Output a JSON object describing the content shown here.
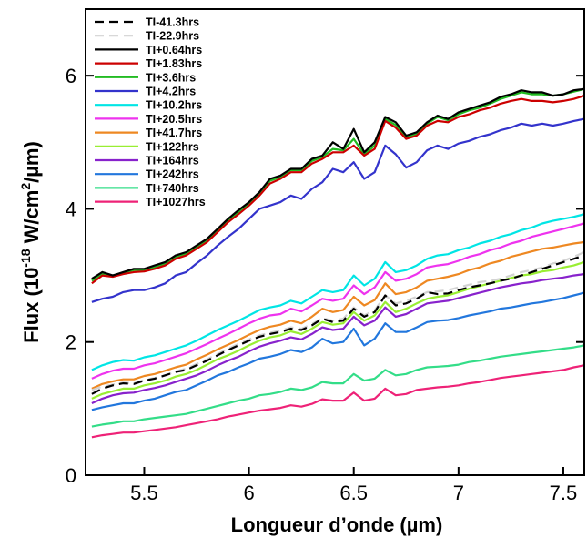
{
  "chart_data": {
    "type": "line",
    "xlabel": "Longueur d’onde (µm)",
    "ylabel_main": "Flux (10",
    "ylabel_sup1": "-18",
    "ylabel_mid": " W/cm",
    "ylabel_sup2": "2",
    "ylabel_end": "/µm)",
    "xlim": [
      5.22,
      7.6
    ],
    "ylim": [
      0,
      7.0
    ],
    "x_ticks": [
      5.5,
      6,
      6.5,
      7,
      7.5
    ],
    "x_tick_labels": [
      "5.5",
      "6",
      "6.5",
      "7",
      "7.5"
    ],
    "y_ticks": [
      0,
      2,
      4,
      6
    ],
    "y_tick_labels": [
      "0",
      "2",
      "4",
      "6"
    ],
    "legend_position": "top-left",
    "x": [
      5.25,
      5.3,
      5.35,
      5.4,
      5.45,
      5.5,
      5.55,
      5.6,
      5.65,
      5.7,
      5.75,
      5.8,
      5.85,
      5.9,
      5.95,
      6.0,
      6.05,
      6.1,
      6.15,
      6.2,
      6.25,
      6.3,
      6.35,
      6.4,
      6.45,
      6.5,
      6.55,
      6.6,
      6.65,
      6.7,
      6.75,
      6.8,
      6.85,
      6.9,
      6.95,
      7.0,
      7.05,
      7.1,
      7.15,
      7.2,
      7.25,
      7.3,
      7.35,
      7.4,
      7.45,
      7.5,
      7.55,
      7.6
    ],
    "series": [
      {
        "name": "TI-41.3hrs",
        "color": "#000000",
        "dash": "10,6",
        "values": [
          1.22,
          1.3,
          1.35,
          1.38,
          1.37,
          1.42,
          1.45,
          1.5,
          1.55,
          1.58,
          1.65,
          1.72,
          1.8,
          1.88,
          1.95,
          2.02,
          2.08,
          2.12,
          2.15,
          2.2,
          2.18,
          2.25,
          2.35,
          2.3,
          2.32,
          2.5,
          2.38,
          2.45,
          2.7,
          2.55,
          2.58,
          2.65,
          2.75,
          2.72,
          2.73,
          2.78,
          2.82,
          2.85,
          2.88,
          2.92,
          2.95,
          3.0,
          3.05,
          3.1,
          3.15,
          3.2,
          3.25,
          3.3
        ]
      },
      {
        "name": "TI-22.9hrs",
        "color": "#d3d3d3",
        "dash": "10,6",
        "values": [
          1.28,
          1.33,
          1.36,
          1.39,
          1.38,
          1.43,
          1.46,
          1.5,
          1.56,
          1.6,
          1.67,
          1.74,
          1.82,
          1.9,
          1.97,
          2.04,
          2.1,
          2.14,
          2.17,
          2.22,
          2.2,
          2.27,
          2.36,
          2.32,
          2.35,
          2.52,
          2.4,
          2.48,
          2.7,
          2.58,
          2.62,
          2.68,
          2.75,
          2.76,
          2.78,
          2.82,
          2.86,
          2.9,
          2.92,
          2.95,
          3.0,
          3.05,
          3.08,
          3.12,
          3.18,
          3.22,
          3.28,
          3.35
        ]
      },
      {
        "name": "TI+0.64hrs",
        "color": "#000000",
        "values": [
          2.95,
          3.05,
          3.0,
          3.05,
          3.1,
          3.1,
          3.15,
          3.2,
          3.3,
          3.35,
          3.45,
          3.55,
          3.7,
          3.85,
          3.98,
          4.1,
          4.25,
          4.45,
          4.5,
          4.6,
          4.6,
          4.75,
          4.8,
          5.0,
          4.9,
          5.2,
          4.85,
          5.0,
          5.38,
          5.3,
          5.1,
          5.15,
          5.3,
          5.4,
          5.35,
          5.45,
          5.5,
          5.55,
          5.6,
          5.68,
          5.72,
          5.78,
          5.75,
          5.75,
          5.7,
          5.72,
          5.78,
          5.8
        ]
      },
      {
        "name": "TI+1.83hrs",
        "color": "#cc0000",
        "values": [
          2.88,
          3.0,
          2.98,
          3.02,
          3.05,
          3.06,
          3.1,
          3.15,
          3.25,
          3.3,
          3.4,
          3.5,
          3.65,
          3.8,
          3.92,
          4.05,
          4.2,
          4.38,
          4.45,
          4.55,
          4.55,
          4.68,
          4.75,
          4.85,
          4.85,
          4.95,
          4.8,
          4.9,
          5.32,
          5.22,
          5.05,
          5.1,
          5.25,
          5.32,
          5.3,
          5.38,
          5.42,
          5.48,
          5.52,
          5.58,
          5.62,
          5.65,
          5.62,
          5.62,
          5.6,
          5.62,
          5.65,
          5.7
        ]
      },
      {
        "name": "TI+3.6hrs",
        "color": "#22bb22",
        "values": [
          2.92,
          3.02,
          3.0,
          3.04,
          3.08,
          3.08,
          3.12,
          3.18,
          3.28,
          3.33,
          3.43,
          3.53,
          3.68,
          3.83,
          3.95,
          4.08,
          4.23,
          4.42,
          4.48,
          4.58,
          4.58,
          4.72,
          4.78,
          4.9,
          4.88,
          5.05,
          4.82,
          4.95,
          5.35,
          5.26,
          5.08,
          5.12,
          5.28,
          5.38,
          5.33,
          5.42,
          5.48,
          5.52,
          5.58,
          5.65,
          5.7,
          5.75,
          5.72,
          5.72,
          5.7,
          5.72,
          5.76,
          5.8
        ]
      },
      {
        "name": "TI+4.2hrs",
        "color": "#3333cc",
        "values": [
          2.6,
          2.65,
          2.68,
          2.75,
          2.78,
          2.78,
          2.82,
          2.88,
          3.0,
          3.05,
          3.18,
          3.3,
          3.45,
          3.58,
          3.7,
          3.85,
          4.0,
          4.05,
          4.1,
          4.2,
          4.15,
          4.3,
          4.4,
          4.6,
          4.55,
          4.7,
          4.45,
          4.55,
          4.95,
          4.82,
          4.62,
          4.7,
          4.88,
          4.95,
          4.9,
          4.98,
          5.02,
          5.08,
          5.12,
          5.18,
          5.22,
          5.28,
          5.25,
          5.28,
          5.25,
          5.28,
          5.32,
          5.35
        ]
      },
      {
        "name": "TI+10.2hrs",
        "color": "#00e5e5",
        "values": [
          1.58,
          1.65,
          1.7,
          1.73,
          1.72,
          1.77,
          1.8,
          1.85,
          1.9,
          1.95,
          2.02,
          2.1,
          2.18,
          2.25,
          2.32,
          2.4,
          2.48,
          2.52,
          2.55,
          2.62,
          2.58,
          2.68,
          2.78,
          2.75,
          2.78,
          3.0,
          2.85,
          2.95,
          3.2,
          3.05,
          3.08,
          3.15,
          3.25,
          3.3,
          3.32,
          3.38,
          3.42,
          3.48,
          3.52,
          3.58,
          3.62,
          3.68,
          3.72,
          3.78,
          3.82,
          3.85,
          3.88,
          3.92
        ]
      },
      {
        "name": "TI+20.5hrs",
        "color": "#ee33ee",
        "values": [
          1.45,
          1.52,
          1.57,
          1.6,
          1.6,
          1.65,
          1.68,
          1.73,
          1.78,
          1.83,
          1.9,
          1.97,
          2.05,
          2.12,
          2.2,
          2.28,
          2.35,
          2.4,
          2.42,
          2.5,
          2.46,
          2.55,
          2.65,
          2.62,
          2.65,
          2.85,
          2.72,
          2.82,
          3.05,
          2.92,
          2.95,
          3.02,
          3.12,
          3.15,
          3.17,
          3.22,
          3.28,
          3.32,
          3.38,
          3.42,
          3.48,
          3.52,
          3.58,
          3.62,
          3.66,
          3.7,
          3.74,
          3.78
        ]
      },
      {
        "name": "TI+41.7hrs",
        "color": "#ee8822",
        "values": [
          1.3,
          1.37,
          1.41,
          1.44,
          1.44,
          1.49,
          1.52,
          1.57,
          1.62,
          1.66,
          1.74,
          1.81,
          1.89,
          1.96,
          2.03,
          2.11,
          2.18,
          2.23,
          2.26,
          2.32,
          2.28,
          2.38,
          2.5,
          2.45,
          2.48,
          2.68,
          2.55,
          2.63,
          2.88,
          2.72,
          2.75,
          2.82,
          2.92,
          2.95,
          2.98,
          3.02,
          3.08,
          3.12,
          3.18,
          3.22,
          3.28,
          3.32,
          3.36,
          3.4,
          3.42,
          3.45,
          3.48,
          3.5
        ]
      },
      {
        "name": "TI+122hrs",
        "color": "#99ee33",
        "values": [
          1.15,
          1.22,
          1.26,
          1.3,
          1.3,
          1.35,
          1.38,
          1.42,
          1.48,
          1.52,
          1.58,
          1.66,
          1.74,
          1.8,
          1.87,
          1.95,
          2.02,
          2.07,
          2.1,
          2.16,
          2.12,
          2.2,
          2.3,
          2.26,
          2.28,
          2.45,
          2.32,
          2.4,
          2.6,
          2.45,
          2.5,
          2.58,
          2.65,
          2.68,
          2.7,
          2.75,
          2.8,
          2.84,
          2.88,
          2.92,
          2.96,
          3.0,
          3.02,
          3.06,
          3.08,
          3.12,
          3.15,
          3.2
        ]
      },
      {
        "name": "TI+164hrs",
        "color": "#8822cc",
        "values": [
          1.08,
          1.15,
          1.2,
          1.23,
          1.24,
          1.28,
          1.31,
          1.35,
          1.4,
          1.45,
          1.5,
          1.57,
          1.65,
          1.72,
          1.78,
          1.86,
          1.93,
          1.98,
          2.02,
          2.07,
          2.04,
          2.12,
          2.22,
          2.18,
          2.2,
          2.38,
          2.25,
          2.32,
          2.52,
          2.38,
          2.42,
          2.5,
          2.58,
          2.6,
          2.62,
          2.66,
          2.7,
          2.74,
          2.78,
          2.82,
          2.85,
          2.88,
          2.9,
          2.93,
          2.95,
          2.97,
          3.0,
          3.02
        ]
      },
      {
        "name": "TI+242hrs",
        "color": "#2277dd",
        "values": [
          0.98,
          1.02,
          1.05,
          1.08,
          1.08,
          1.12,
          1.15,
          1.2,
          1.25,
          1.28,
          1.35,
          1.42,
          1.5,
          1.55,
          1.62,
          1.68,
          1.75,
          1.78,
          1.82,
          1.88,
          1.85,
          1.92,
          2.05,
          1.98,
          2.0,
          2.2,
          1.95,
          2.05,
          2.28,
          2.15,
          2.15,
          2.22,
          2.3,
          2.32,
          2.33,
          2.36,
          2.4,
          2.43,
          2.46,
          2.5,
          2.52,
          2.55,
          2.58,
          2.6,
          2.63,
          2.66,
          2.7,
          2.74
        ]
      },
      {
        "name": "TI+740hrs",
        "color": "#33dd88",
        "values": [
          0.73,
          0.76,
          0.78,
          0.81,
          0.81,
          0.84,
          0.86,
          0.88,
          0.9,
          0.92,
          0.96,
          1.0,
          1.04,
          1.08,
          1.12,
          1.15,
          1.2,
          1.22,
          1.25,
          1.3,
          1.28,
          1.32,
          1.4,
          1.38,
          1.38,
          1.52,
          1.42,
          1.45,
          1.58,
          1.5,
          1.52,
          1.58,
          1.62,
          1.63,
          1.64,
          1.66,
          1.7,
          1.72,
          1.75,
          1.78,
          1.8,
          1.82,
          1.84,
          1.86,
          1.88,
          1.9,
          1.92,
          1.95
        ]
      },
      {
        "name": "TI+1027hrs",
        "color": "#ee2277",
        "values": [
          0.57,
          0.6,
          0.62,
          0.64,
          0.64,
          0.66,
          0.68,
          0.7,
          0.72,
          0.75,
          0.78,
          0.81,
          0.84,
          0.88,
          0.91,
          0.94,
          0.97,
          0.99,
          1.01,
          1.05,
          1.03,
          1.07,
          1.14,
          1.12,
          1.12,
          1.24,
          1.12,
          1.15,
          1.3,
          1.2,
          1.22,
          1.28,
          1.3,
          1.32,
          1.33,
          1.35,
          1.38,
          1.4,
          1.43,
          1.46,
          1.48,
          1.5,
          1.52,
          1.54,
          1.56,
          1.58,
          1.62,
          1.65
        ]
      }
    ]
  }
}
